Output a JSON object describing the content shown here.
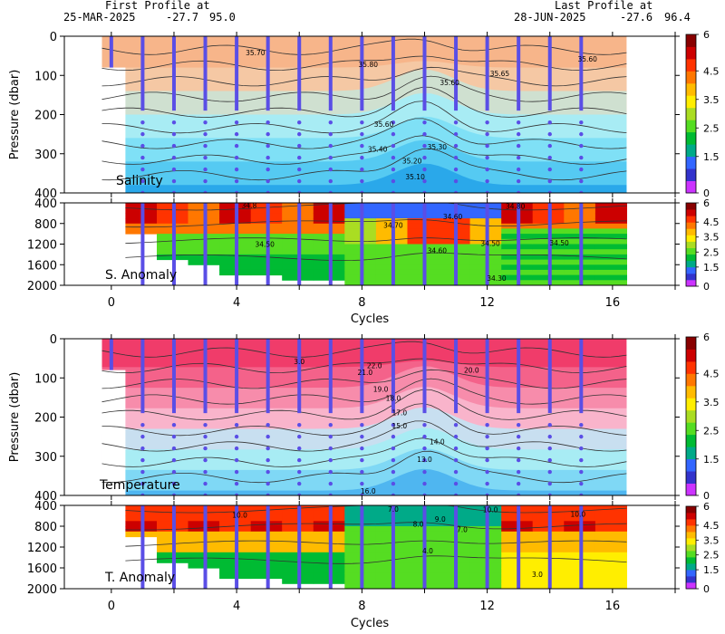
{
  "header": {
    "first_label": "First Profile at",
    "first_date": "25-MAR-2025",
    "first_lat": "-27.7",
    "first_lon": "95.0",
    "last_label": "Last Profile at",
    "last_date": "28-JUN-2025",
    "last_lat": "-27.6",
    "last_lon": "96.4"
  },
  "colors": {
    "profile_line": "#5a4ee6",
    "contour": "#333333",
    "anomaly_scale": [
      "#cc33ff",
      "#3333cc",
      "#3366ff",
      "#00aa88",
      "#00bb33",
      "#55dd22",
      "#aadd22",
      "#ffee00",
      "#ffbb00",
      "#ff7700",
      "#ff3300",
      "#cc0000",
      "#880000"
    ],
    "salinity_bands": [
      "#f7b58a",
      "#f5c8a4",
      "#cfe0d0",
      "#a8ecf4",
      "#7fe0f6",
      "#55caf2",
      "#2aa8ea"
    ],
    "temperature_bands": [
      "#f03c6a",
      "#f4628a",
      "#f78cab",
      "#f9b4cb",
      "#c8dff0",
      "#a8ecf4",
      "#7fd8f5",
      "#4fb6f0"
    ]
  },
  "chart_data": [
    {
      "type": "heatmap",
      "title": "Salinity",
      "ylabel": "Pressure (dbar)",
      "xlim": [
        -1.5,
        18
      ],
      "ylim": [
        400,
        0
      ],
      "y_ticks": [
        0,
        100,
        200,
        300,
        400
      ],
      "x_ticks": [
        0,
        4,
        8,
        12,
        16
      ],
      "colorbar": {
        "ticks": [
          "6",
          "4.5",
          "3.5",
          "2.5",
          "1.5",
          "0"
        ]
      },
      "contours": [
        {
          "label": "35.70",
          "x": 4.6,
          "y": 42
        },
        {
          "label": "35.80",
          "x": 8.2,
          "y": 72
        },
        {
          "label": "35.60",
          "x": 10.8,
          "y": 118
        },
        {
          "label": "35.65",
          "x": 12.4,
          "y": 95
        },
        {
          "label": "35.60",
          "x": 15.2,
          "y": 58
        },
        {
          "label": "35.60",
          "x": 8.7,
          "y": 224
        },
        {
          "label": "35.40",
          "x": 8.5,
          "y": 288
        },
        {
          "label": "35.30",
          "x": 10.4,
          "y": 282
        },
        {
          "label": "35.20",
          "x": 9.6,
          "y": 318
        },
        {
          "label": "35.10",
          "x": 9.7,
          "y": 358
        }
      ],
      "profiles_x": [
        0,
        1,
        2,
        3,
        4,
        5,
        6,
        7,
        8,
        9,
        10,
        11,
        12,
        13,
        14,
        15
      ]
    },
    {
      "type": "heatmap",
      "title": "S. Anomaly",
      "xlabel": "Cycles",
      "xlim": [
        -1.5,
        18
      ],
      "ylim": [
        2000,
        400
      ],
      "y_ticks": [
        400,
        800,
        1200,
        1600,
        2000
      ],
      "x_ticks": [
        0,
        4,
        8,
        12,
        16
      ],
      "colorbar": {
        "ticks": [
          "6",
          "4.5",
          "3.5",
          "2.5",
          "1.5",
          "0"
        ]
      },
      "contours": [
        {
          "label": "34.8",
          "x": 4.4,
          "y": 440
        },
        {
          "label": "34.50",
          "x": 4.9,
          "y": 1200
        },
        {
          "label": "34.70",
          "x": 9.0,
          "y": 830
        },
        {
          "label": "34.60",
          "x": 10.9,
          "y": 660
        },
        {
          "label": "34.80",
          "x": 12.9,
          "y": 460
        },
        {
          "label": "34.50",
          "x": 14.3,
          "y": 1170
        },
        {
          "label": "34.60",
          "x": 10.4,
          "y": 1320
        },
        {
          "label": "34.50",
          "x": 12.1,
          "y": 1180
        },
        {
          "label": "34.30",
          "x": 12.3,
          "y": 1860
        }
      ],
      "profiles_x": [
        0,
        1,
        2,
        3,
        4,
        5,
        6,
        7,
        8,
        9,
        10,
        11,
        12,
        13,
        14,
        15
      ]
    },
    {
      "type": "heatmap",
      "title": "Temperature",
      "ylabel": "Pressure (dbar)",
      "xlim": [
        -1.5,
        18
      ],
      "ylim": [
        400,
        0
      ],
      "y_ticks": [
        0,
        100,
        200,
        300,
        400
      ],
      "x_ticks": [
        0,
        4,
        8,
        12,
        16
      ],
      "colorbar": {
        "ticks": [
          "6",
          "4.5",
          "3.5",
          "2.5",
          "1.5",
          "0"
        ]
      },
      "contours": [
        {
          "label": "3.0",
          "x": 6.0,
          "y": 58
        },
        {
          "label": "22.0",
          "x": 8.4,
          "y": 68
        },
        {
          "label": "21.0",
          "x": 8.1,
          "y": 85
        },
        {
          "label": "20.0",
          "x": 11.5,
          "y": 80
        },
        {
          "label": "19.0",
          "x": 8.6,
          "y": 128
        },
        {
          "label": "18.0",
          "x": 9.0,
          "y": 152
        },
        {
          "label": "17.0",
          "x": 9.2,
          "y": 188
        },
        {
          "label": "15.0",
          "x": 9.2,
          "y": 222
        },
        {
          "label": "14.0",
          "x": 10.4,
          "y": 262
        },
        {
          "label": "13.0",
          "x": 10.0,
          "y": 308
        },
        {
          "label": "16.0",
          "x": 8.2,
          "y": 388
        }
      ],
      "profiles_x": [
        0,
        1,
        2,
        3,
        4,
        5,
        6,
        7,
        8,
        9,
        10,
        11,
        12,
        13,
        14,
        15
      ]
    },
    {
      "type": "heatmap",
      "title": "T. Anomaly",
      "xlabel": "Cycles",
      "xlim": [
        -1.5,
        18
      ],
      "ylim": [
        2000,
        400
      ],
      "y_ticks": [
        400,
        800,
        1200,
        1600,
        2000
      ],
      "x_ticks": [
        0,
        4,
        8,
        12,
        16
      ],
      "colorbar": {
        "ticks": [
          "6",
          "4.5",
          "3.5",
          "2.5",
          "1.5",
          "0"
        ]
      },
      "contours": [
        {
          "label": "10.0",
          "x": 4.1,
          "y": 580
        },
        {
          "label": "7.0",
          "x": 9.0,
          "y": 470
        },
        {
          "label": "10.0",
          "x": 12.1,
          "y": 475
        },
        {
          "label": "10.0",
          "x": 14.9,
          "y": 565
        },
        {
          "label": "9.0",
          "x": 10.5,
          "y": 660
        },
        {
          "label": "8.0",
          "x": 9.8,
          "y": 760
        },
        {
          "label": "7.0",
          "x": 11.2,
          "y": 860
        },
        {
          "label": "4.0",
          "x": 10.1,
          "y": 1270
        },
        {
          "label": "3.0",
          "x": 13.6,
          "y": 1720
        }
      ],
      "profiles_x": [
        0,
        1,
        2,
        3,
        4,
        5,
        6,
        7,
        8,
        9,
        10,
        11,
        12,
        13,
        14,
        15
      ]
    }
  ]
}
